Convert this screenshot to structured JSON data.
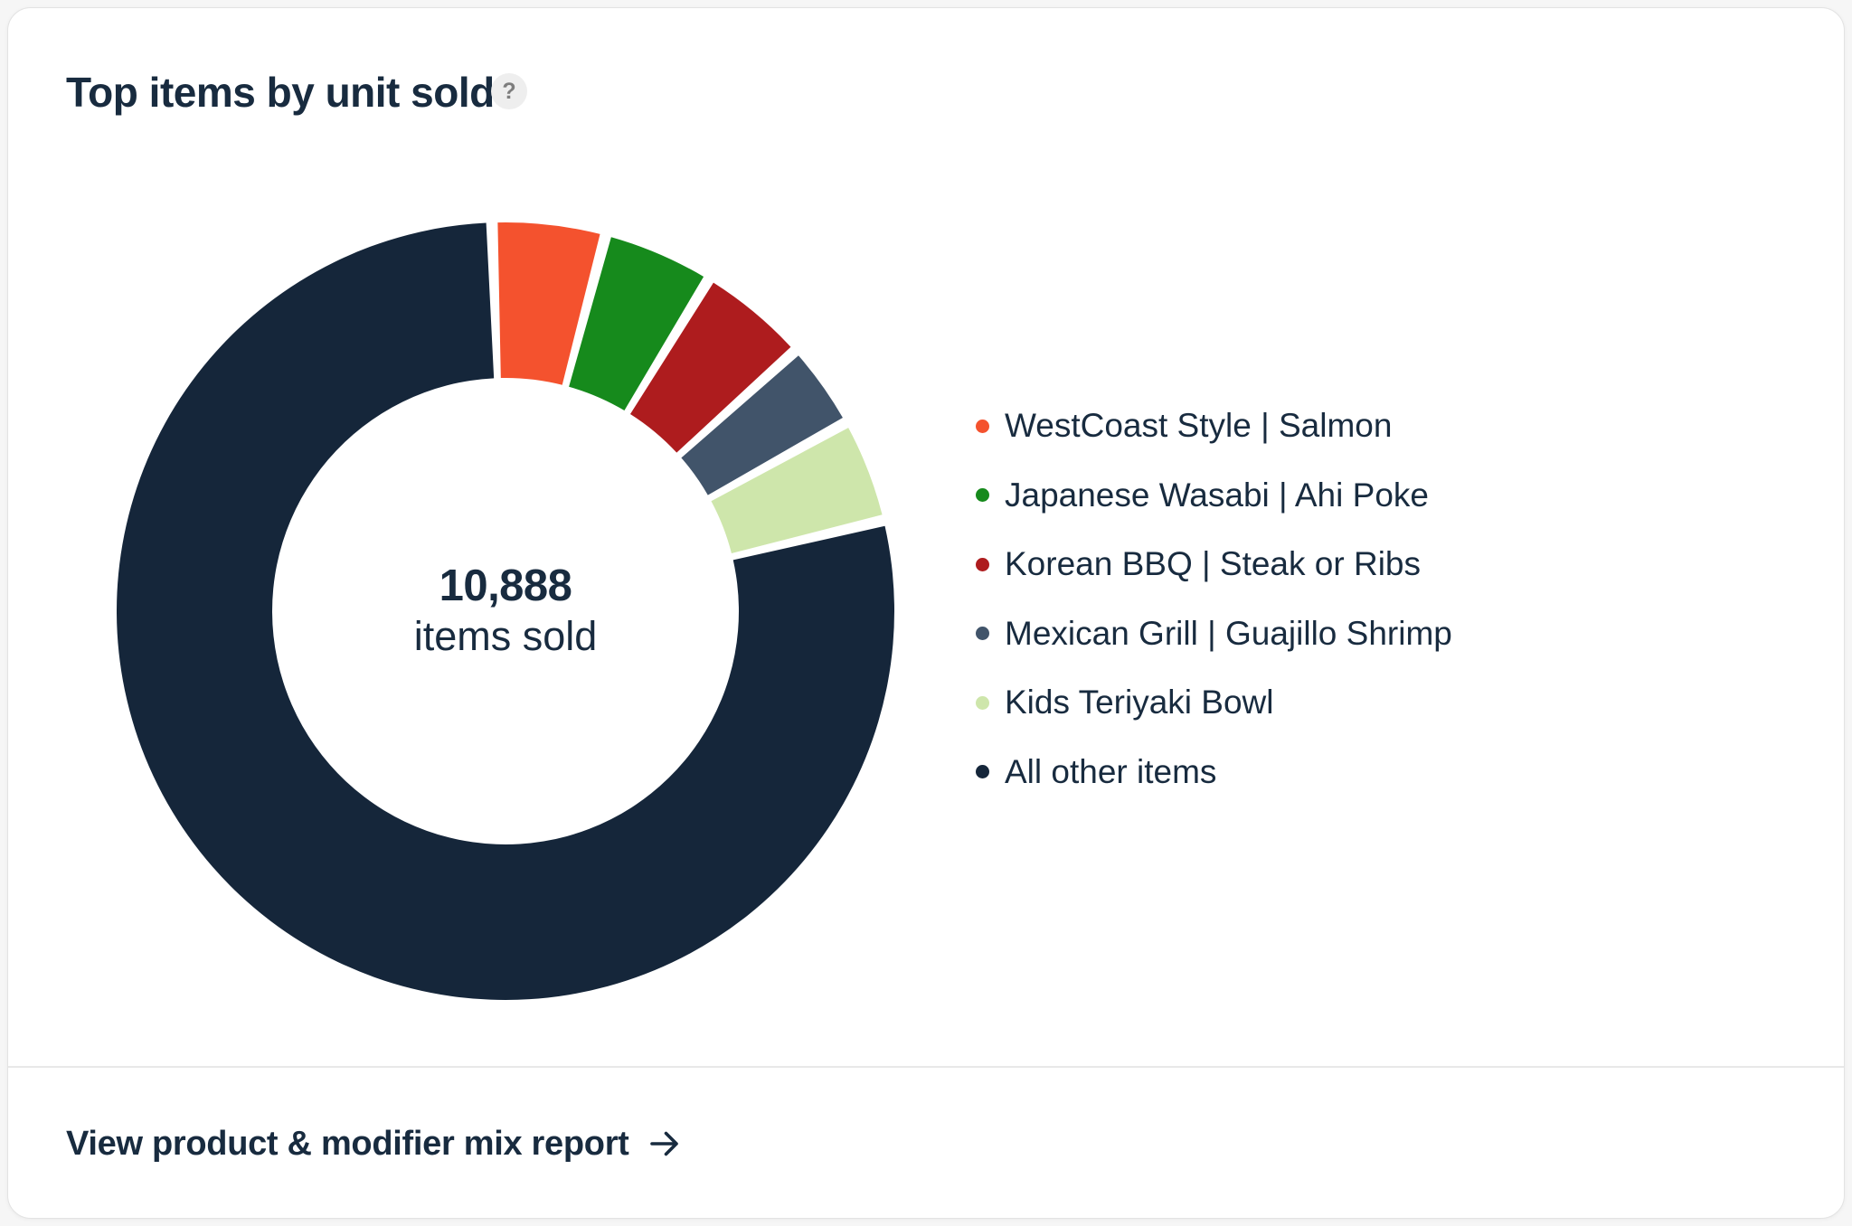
{
  "card": {
    "title": "Top items by unit sold",
    "help_icon": "?",
    "footer_link": "View product & modifier mix report"
  },
  "colors": {
    "page_bg": "#F6F6F6",
    "card_bg": "#FFFFFF",
    "border": "#E3E3E3",
    "divider": "#E8E8E8",
    "text": "#182B3F",
    "help_bg": "#EEEEEE",
    "help_fg": "#7D7D7D"
  },
  "chart_data": {
    "type": "donut",
    "title": "Top items by unit sold",
    "center_value": "10,888",
    "center_label": "items sold",
    "total_items": "10,888",
    "legend_position": "right",
    "start_angle_deg": -2,
    "segments": [
      {
        "label": "WestCoast Style | Salmon",
        "color": "#F4522E",
        "share_pct": 4.7
      },
      {
        "label": "Japanese Wasabi | Ahi Poke",
        "color": "#168A1C",
        "share_pct": 4.6
      },
      {
        "label": "Korean BBQ | Steak or Ribs",
        "color": "#AE1C1E",
        "share_pct": 4.6
      },
      {
        "label": "Mexican Grill | Guajillo Shrimp",
        "color": "#41546A",
        "share_pct": 3.6
      },
      {
        "label": "Kids Teriyaki Bowl",
        "color": "#CEE6AB",
        "share_pct": 4.3
      },
      {
        "label": "All other items",
        "color": "#15263A",
        "share_pct": 78.2
      }
    ]
  }
}
